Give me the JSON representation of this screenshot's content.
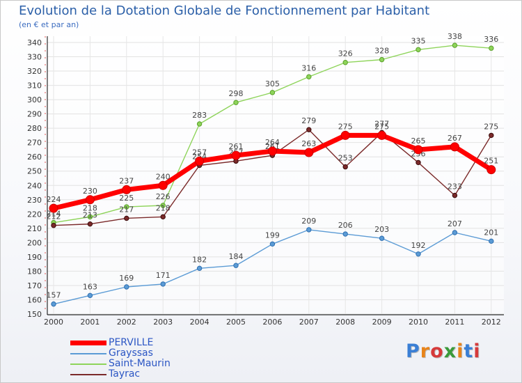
{
  "header": {
    "title": "Evolution de la Dotation Globale de Fonctionnement par Habitant",
    "subtitle": "(en € et par an)"
  },
  "logo": {
    "text": "Proxiti",
    "colors": [
      "#3a7fd5",
      "#e8841a",
      "#d63a3a",
      "#3a9a3a",
      "#e8841a",
      "#3a7fd5",
      "#d63a3a"
    ]
  },
  "chart_data": {
    "type": "line",
    "x": [
      "2000",
      "2001",
      "2002",
      "2003",
      "2004",
      "2005",
      "2006",
      "2007",
      "2008",
      "2009",
      "2010",
      "2011",
      "2012"
    ],
    "ylim": [
      150,
      340
    ],
    "yticks": [
      150,
      160,
      170,
      180,
      190,
      200,
      210,
      220,
      230,
      240,
      250,
      260,
      270,
      280,
      290,
      300,
      310,
      320,
      330,
      340
    ],
    "xlabel": "",
    "ylabel": "",
    "grid": "horizontal",
    "legend_position": "bottom-left",
    "series": [
      {
        "name": "PERVILLE",
        "color": "#ff0000",
        "values": [
          224,
          230,
          237,
          240,
          257,
          261,
          264,
          263,
          275,
          275,
          265,
          267,
          251
        ]
      },
      {
        "name": "Grayssas",
        "color": "#5b9bd5",
        "values": [
          157,
          163,
          169,
          171,
          182,
          184,
          199,
          209,
          206,
          203,
          192,
          207,
          201
        ]
      },
      {
        "name": "Saint-Maurin",
        "color": "#8ed45a",
        "values": [
          214,
          218,
          225,
          226,
          283,
          298,
          305,
          316,
          326,
          328,
          335,
          338,
          336
        ]
      },
      {
        "name": "Tayrac",
        "color": "#7b2a2a",
        "values": [
          212,
          213,
          217,
          218,
          254,
          257,
          261,
          279,
          253,
          277,
          256,
          233,
          275
        ]
      }
    ]
  }
}
